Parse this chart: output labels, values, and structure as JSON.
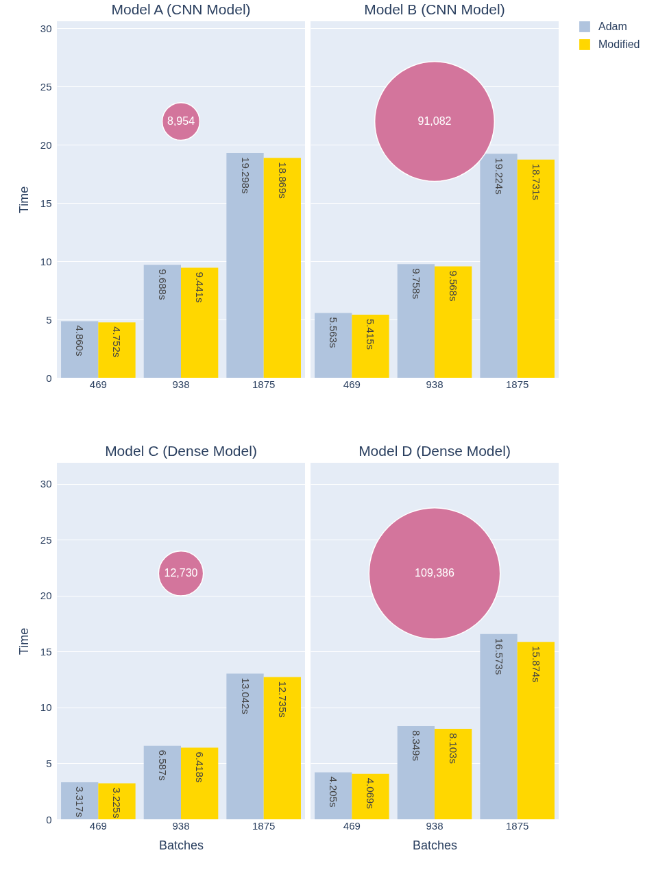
{
  "chart_data": [
    {
      "type": "bar",
      "title": "Model A (CNN Model)",
      "ylabel": "Time",
      "categories": [
        "469",
        "938",
        "1875"
      ],
      "ylim": [
        0,
        30.6
      ],
      "yticks": [
        0,
        5,
        10,
        15,
        20,
        25,
        30
      ],
      "grid": "y",
      "legend": "top right",
      "series": [
        {
          "name": "Adam",
          "color": "#b0c4de",
          "values": [
            4.86,
            9.688,
            19.298
          ],
          "value_labels": [
            "4.860s",
            "9.688s",
            "19.298s"
          ]
        },
        {
          "name": "Modified",
          "color": "#ffd700",
          "values": [
            4.752,
            9.441,
            18.869
          ],
          "value_labels": [
            "4.752s",
            "9.441s",
            "18.869s"
          ]
        },
        {
          "type": "bubble",
          "color": "#d3759c",
          "x": [
            "938"
          ],
          "values": [
            22
          ],
          "sizes": [
            8954
          ],
          "value_labels": [
            "8,954"
          ]
        }
      ]
    },
    {
      "type": "bar",
      "title": "Model B (CNN Model)",
      "categories": [
        "469",
        "938",
        "1875"
      ],
      "ylim": [
        0,
        30.6
      ],
      "yticks": [
        0,
        5,
        10,
        15,
        20,
        25,
        30
      ],
      "grid": "y",
      "tick_labels": "x",
      "series": [
        {
          "name": "Adam",
          "color": "#b0c4de",
          "values": [
            5.563,
            9.758,
            19.224
          ],
          "value_labels": [
            "5.563s",
            "9.758s",
            "19.224s"
          ]
        },
        {
          "name": "Modified",
          "color": "#ffd700",
          "values": [
            5.415,
            9.568,
            18.731
          ],
          "value_labels": [
            "5.415s",
            "9.568s",
            "18.731s"
          ]
        },
        {
          "type": "bubble",
          "color": "#d3759c",
          "x": [
            "938"
          ],
          "values": [
            22
          ],
          "sizes": [
            91082
          ],
          "value_labels": [
            "91,082"
          ]
        }
      ]
    },
    {
      "type": "bar",
      "title": "Model C (Dense Model)",
      "xlabel": "Batches",
      "ylabel": "Time",
      "categories": [
        "469",
        "938",
        "1875"
      ],
      "ylim": [
        0,
        31.9
      ],
      "yticks": [
        0,
        5,
        10,
        15,
        20,
        25,
        30
      ],
      "grid": "y",
      "series": [
        {
          "name": "Adam",
          "color": "#b0c4de",
          "values": [
            3.317,
            6.587,
            13.042
          ],
          "value_labels": [
            "3.317s",
            "6.587s",
            "13.042s"
          ]
        },
        {
          "name": "Modified",
          "color": "#ffd700",
          "values": [
            3.225,
            6.418,
            12.735
          ],
          "value_labels": [
            "3.225s",
            "6.418s",
            "12.735s"
          ]
        },
        {
          "type": "bubble",
          "color": "#d3759c",
          "x": [
            "938"
          ],
          "values": [
            22
          ],
          "sizes": [
            12730
          ],
          "value_labels": [
            "12,730"
          ]
        }
      ]
    },
    {
      "type": "bar",
      "title": "Model D (Dense Model)",
      "xlabel": "Batches",
      "categories": [
        "469",
        "938",
        "1875"
      ],
      "ylim": [
        0,
        31.9
      ],
      "yticks": [
        0,
        5,
        10,
        15,
        20,
        25,
        30
      ],
      "grid": "y",
      "tick_labels": "x",
      "series": [
        {
          "name": "Adam",
          "color": "#b0c4de",
          "values": [
            4.205,
            8.349,
            16.573
          ],
          "value_labels": [
            "4.205s",
            "8.349s",
            "16.573s"
          ]
        },
        {
          "name": "Modified",
          "color": "#ffd700",
          "values": [
            4.069,
            8.103,
            15.874
          ],
          "value_labels": [
            "4.069s",
            "8.103s",
            "15.874s"
          ]
        },
        {
          "type": "bubble",
          "color": "#d3759c",
          "x": [
            "938"
          ],
          "values": [
            22
          ],
          "sizes": [
            109386
          ],
          "value_labels": [
            "109,386"
          ]
        }
      ]
    }
  ]
}
